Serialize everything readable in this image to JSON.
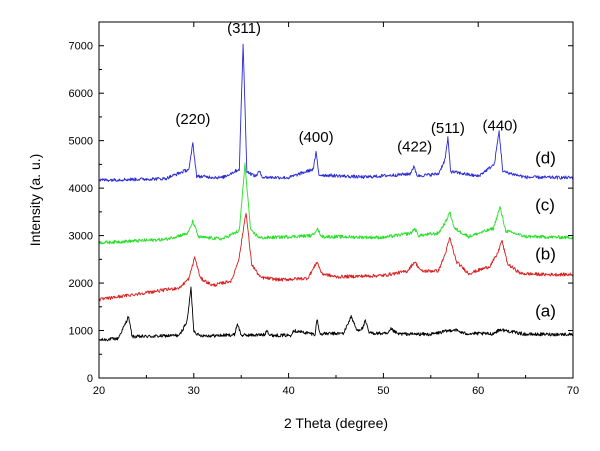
{
  "chart_data": {
    "type": "line",
    "title": "",
    "xlabel": "2 Theta (degree)",
    "ylabel": "Intensity (a. u.)",
    "xlim": [
      20,
      70
    ],
    "ylim": [
      0,
      7500
    ],
    "x_ticks": [
      20,
      30,
      40,
      50,
      60,
      70
    ],
    "y_ticks": [
      0,
      1000,
      2000,
      3000,
      4000,
      5000,
      6000,
      7000
    ],
    "grid": false,
    "peak_labels": [
      {
        "text": "(220)",
        "x": 29.9,
        "y": 5350
      },
      {
        "text": "(311)",
        "x": 35.3,
        "y": 7270
      },
      {
        "text": "(400)",
        "x": 42.9,
        "y": 4970
      },
      {
        "text": "(422)",
        "x": 53.3,
        "y": 4770
      },
      {
        "text": "(511)",
        "x": 56.8,
        "y": 5160
      },
      {
        "text": "(440)",
        "x": 62.3,
        "y": 5210
      }
    ],
    "series": [
      {
        "name": "(a)",
        "color": "#000000",
        "label_x": 66.0,
        "label_y": 1300,
        "x": [
          20,
          22,
          22.8,
          23.1,
          23.5,
          26,
          28.5,
          29.3,
          29.7,
          30.0,
          30.5,
          32,
          34.3,
          34.6,
          35.0,
          37.5,
          37.7,
          38.0,
          40.2,
          40.5,
          42.8,
          43.0,
          43.3,
          45.8,
          46.6,
          47.2,
          47.8,
          48.1,
          48.5,
          50.5,
          50.8,
          51.5,
          55,
          57.5,
          58.5,
          61.5,
          62.3,
          65,
          70
        ],
        "y": [
          800,
          830,
          1150,
          1300,
          870,
          880,
          900,
          1200,
          1900,
          1000,
          900,
          890,
          910,
          1150,
          900,
          910,
          1030,
          900,
          900,
          1000,
          920,
          1250,
          930,
          940,
          1300,
          1000,
          1050,
          1200,
          950,
          930,
          1030,
          930,
          920,
          1020,
          940,
          930,
          1020,
          920,
          920
        ]
      },
      {
        "name": "(b)",
        "color": "#d82020",
        "label_x": 66.0,
        "label_y": 2500,
        "x": [
          20,
          25,
          28.5,
          29.5,
          30.1,
          30.7,
          32,
          34,
          34.8,
          35.5,
          36.1,
          37,
          39,
          42,
          42.6,
          43.0,
          43.5,
          45,
          50,
          52.5,
          53.3,
          54.0,
          55.8,
          56.5,
          57.0,
          57.7,
          59,
          61.2,
          62.0,
          62.5,
          63.1,
          64.5,
          67,
          70
        ],
        "y": [
          1650,
          1800,
          1900,
          2100,
          2550,
          2100,
          1950,
          2050,
          2550,
          3500,
          2400,
          2120,
          2070,
          2100,
          2300,
          2450,
          2200,
          2130,
          2160,
          2250,
          2450,
          2250,
          2260,
          2600,
          2950,
          2450,
          2200,
          2350,
          2600,
          2900,
          2400,
          2200,
          2180,
          2180
        ]
      },
      {
        "name": "(c)",
        "color": "#26e026",
        "label_x": 66.0,
        "label_y": 3530,
        "x": [
          20,
          27,
          29.4,
          29.9,
          30.5,
          33,
          34.8,
          35.4,
          36.0,
          37,
          42.5,
          43.0,
          43.5,
          50,
          52.9,
          53.3,
          53.7,
          55.8,
          56.6,
          57.0,
          57.5,
          59,
          61.6,
          62.3,
          62.9,
          65,
          70
        ],
        "y": [
          2850,
          2920,
          3050,
          3300,
          2970,
          2930,
          3100,
          4500,
          3100,
          2950,
          3000,
          3150,
          2980,
          2960,
          3050,
          3150,
          3000,
          3050,
          3300,
          3500,
          3150,
          2980,
          3150,
          3600,
          3100,
          2980,
          2960
        ]
      },
      {
        "name": "(d)",
        "color": "#2a2ad2",
        "label_x": 66.0,
        "label_y": 4520,
        "x": [
          20,
          27,
          29.5,
          29.9,
          30.3,
          33,
          34.8,
          35.2,
          35.6,
          36.5,
          36.9,
          37.3,
          40,
          42.6,
          42.9,
          43.2,
          48,
          52.8,
          53.2,
          53.6,
          55.8,
          56.5,
          56.8,
          57.1,
          60,
          61.7,
          62.2,
          62.6,
          65,
          70
        ],
        "y": [
          4170,
          4200,
          4400,
          4950,
          4250,
          4220,
          4400,
          7050,
          4350,
          4250,
          4350,
          4230,
          4220,
          4400,
          4750,
          4280,
          4230,
          4300,
          4450,
          4260,
          4300,
          4600,
          5050,
          4350,
          4250,
          4500,
          5200,
          4350,
          4230,
          4220
        ]
      }
    ]
  }
}
